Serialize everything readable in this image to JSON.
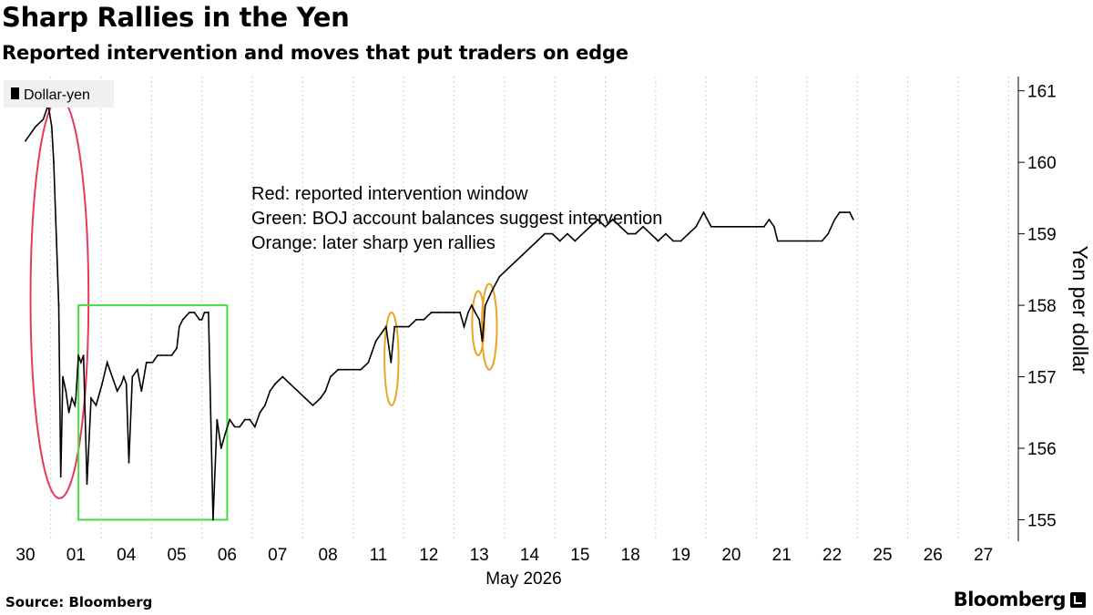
{
  "chart_data": {
    "type": "line",
    "title": "Sharp Rallies in the Yen",
    "subtitle": "Reported intervention and moves that put traders on edge",
    "ylabel": "Yen per dollar",
    "xlabel": "May 2026",
    "ylim": [
      154.7,
      161.2
    ],
    "yticks": [
      155,
      156,
      157,
      158,
      159,
      160,
      161
    ],
    "legend": {
      "placement": "top-left",
      "entries": [
        {
          "name": "Dollar-yen",
          "color": "#000000"
        }
      ]
    },
    "categories": [
      "30",
      "01",
      "04",
      "05",
      "06",
      "07",
      "08",
      "11",
      "12",
      "13",
      "14",
      "15",
      "18",
      "19",
      "20",
      "21",
      "22",
      "25",
      "26",
      "27"
    ],
    "series": [
      {
        "name": "Dollar-yen",
        "color": "#000000",
        "points": [
          [
            0.0,
            160.3
          ],
          [
            0.2,
            160.5
          ],
          [
            0.35,
            160.6
          ],
          [
            0.45,
            160.8
          ],
          [
            0.52,
            160.5
          ],
          [
            0.56,
            160.0
          ],
          [
            0.6,
            159.2
          ],
          [
            0.66,
            158.0
          ],
          [
            0.7,
            155.6
          ],
          [
            0.74,
            157.0
          ],
          [
            0.8,
            156.8
          ],
          [
            0.86,
            156.5
          ],
          [
            0.92,
            156.7
          ],
          [
            0.98,
            156.6
          ],
          [
            1.0,
            156.7
          ],
          [
            1.05,
            157.3
          ],
          [
            1.1,
            157.2
          ],
          [
            1.15,
            157.3
          ],
          [
            1.22,
            155.5
          ],
          [
            1.3,
            156.7
          ],
          [
            1.4,
            156.6
          ],
          [
            1.52,
            156.9
          ],
          [
            1.62,
            157.2
          ],
          [
            1.72,
            157.0
          ],
          [
            1.82,
            156.8
          ],
          [
            1.9,
            156.9
          ],
          [
            1.95,
            157.0
          ],
          [
            2.0,
            156.9
          ],
          [
            2.05,
            155.8
          ],
          [
            2.12,
            157.0
          ],
          [
            2.22,
            157.1
          ],
          [
            2.3,
            156.8
          ],
          [
            2.4,
            157.2
          ],
          [
            2.52,
            157.2
          ],
          [
            2.62,
            157.3
          ],
          [
            2.7,
            157.3
          ],
          [
            2.8,
            157.3
          ],
          [
            2.9,
            157.3
          ],
          [
            3.0,
            157.4
          ],
          [
            3.05,
            157.7
          ],
          [
            3.12,
            157.8
          ],
          [
            3.25,
            157.9
          ],
          [
            3.35,
            157.9
          ],
          [
            3.45,
            157.8
          ],
          [
            3.5,
            157.8
          ],
          [
            3.55,
            157.9
          ],
          [
            3.63,
            157.9
          ],
          [
            3.72,
            155.0
          ],
          [
            3.8,
            156.4
          ],
          [
            3.88,
            156.0
          ],
          [
            3.96,
            156.2
          ],
          [
            4.05,
            156.4
          ],
          [
            4.15,
            156.3
          ],
          [
            4.25,
            156.3
          ],
          [
            4.35,
            156.4
          ],
          [
            4.45,
            156.4
          ],
          [
            4.55,
            156.3
          ],
          [
            4.65,
            156.5
          ],
          [
            4.75,
            156.6
          ],
          [
            4.85,
            156.8
          ],
          [
            4.95,
            156.9
          ],
          [
            5.1,
            157.0
          ],
          [
            5.25,
            156.9
          ],
          [
            5.4,
            156.8
          ],
          [
            5.55,
            156.7
          ],
          [
            5.7,
            156.6
          ],
          [
            5.85,
            156.7
          ],
          [
            5.95,
            156.8
          ],
          [
            6.05,
            157.0
          ],
          [
            6.2,
            157.1
          ],
          [
            6.35,
            157.1
          ],
          [
            6.5,
            157.1
          ],
          [
            6.65,
            157.1
          ],
          [
            6.8,
            157.2
          ],
          [
            6.95,
            157.5
          ],
          [
            7.05,
            157.6
          ],
          [
            7.15,
            157.7
          ],
          [
            7.25,
            157.2
          ],
          [
            7.32,
            157.7
          ],
          [
            7.45,
            157.7
          ],
          [
            7.6,
            157.7
          ],
          [
            7.75,
            157.8
          ],
          [
            7.9,
            157.8
          ],
          [
            8.05,
            157.9
          ],
          [
            8.2,
            157.9
          ],
          [
            8.35,
            157.9
          ],
          [
            8.5,
            157.9
          ],
          [
            8.62,
            157.9
          ],
          [
            8.7,
            157.7
          ],
          [
            8.78,
            157.9
          ],
          [
            8.85,
            158.0
          ],
          [
            8.92,
            157.9
          ],
          [
            9.0,
            157.8
          ],
          [
            9.06,
            157.5
          ],
          [
            9.12,
            158.0
          ],
          [
            9.25,
            158.2
          ],
          [
            9.4,
            158.4
          ],
          [
            9.55,
            158.5
          ],
          [
            9.7,
            158.6
          ],
          [
            9.85,
            158.7
          ],
          [
            10.0,
            158.8
          ],
          [
            10.15,
            158.9
          ],
          [
            10.3,
            159.0
          ],
          [
            10.45,
            159.0
          ],
          [
            10.6,
            158.9
          ],
          [
            10.75,
            159.0
          ],
          [
            10.9,
            158.9
          ],
          [
            11.05,
            159.0
          ],
          [
            11.2,
            159.1
          ],
          [
            11.35,
            159.2
          ],
          [
            11.5,
            159.1
          ],
          [
            11.65,
            159.2
          ],
          [
            11.8,
            159.1
          ],
          [
            11.95,
            159.0
          ],
          [
            12.1,
            159.0
          ],
          [
            12.25,
            159.1
          ],
          [
            12.4,
            159.0
          ],
          [
            12.55,
            158.9
          ],
          [
            12.7,
            159.0
          ],
          [
            12.85,
            158.9
          ],
          [
            13.0,
            158.9
          ],
          [
            13.15,
            159.0
          ],
          [
            13.3,
            159.1
          ],
          [
            13.45,
            159.3
          ],
          [
            13.6,
            159.1
          ],
          [
            13.75,
            159.1
          ],
          [
            13.9,
            159.1
          ],
          [
            14.05,
            159.1
          ],
          [
            14.2,
            159.1
          ],
          [
            14.35,
            159.1
          ],
          [
            14.5,
            159.1
          ],
          [
            14.65,
            159.1
          ],
          [
            14.75,
            159.2
          ],
          [
            14.85,
            159.1
          ],
          [
            14.92,
            158.9
          ],
          [
            15.05,
            158.9
          ],
          [
            15.2,
            158.9
          ],
          [
            15.35,
            158.9
          ],
          [
            15.5,
            158.9
          ],
          [
            15.65,
            158.9
          ],
          [
            15.8,
            158.9
          ],
          [
            15.92,
            159.0
          ],
          [
            16.05,
            159.2
          ],
          [
            16.15,
            159.3
          ],
          [
            16.25,
            159.3
          ],
          [
            16.35,
            159.3
          ],
          [
            16.42,
            159.2
          ]
        ]
      }
    ],
    "annotations": [
      {
        "text": "Red: reported intervention window",
        "color": "#000000"
      },
      {
        "text": "Green: BOJ account balances suggest intervention",
        "color": "#000000"
      },
      {
        "text": "Orange: later sharp yen rallies",
        "color": "#000000"
      }
    ],
    "highlights": [
      {
        "kind": "ellipse",
        "color": "#e8395a",
        "x_range": [
          0.1,
          1.25
        ],
        "y_range": [
          155.3,
          160.9
        ]
      },
      {
        "kind": "rect",
        "color": "#44e040",
        "x_range": [
          1.05,
          4.0
        ],
        "y_range": [
          155.0,
          158.0
        ]
      },
      {
        "kind": "ellipse",
        "color": "#e8a423",
        "x_range": [
          7.12,
          7.4
        ],
        "y_range": [
          156.6,
          157.9
        ]
      },
      {
        "kind": "ellipse",
        "color": "#e8a423",
        "x_range": [
          8.86,
          9.1
        ],
        "y_range": [
          157.3,
          158.2
        ]
      },
      {
        "kind": "ellipse",
        "color": "#e8a423",
        "x_range": [
          9.05,
          9.35
        ],
        "y_range": [
          157.1,
          158.3
        ]
      }
    ],
    "grid": {
      "vertical": true,
      "horizontal": false
    }
  },
  "footer": {
    "source": "Source: Bloomberg",
    "brand": "Bloomberg"
  }
}
